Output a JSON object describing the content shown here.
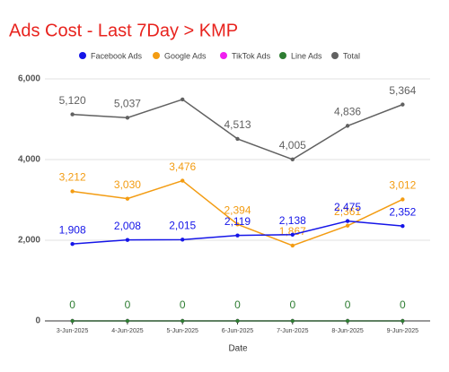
{
  "chart_data": {
    "type": "line",
    "title": "Ads Cost - Last 7Day > KMP",
    "x_label": "Date",
    "categories": [
      "3-Jun-2025",
      "4-Jun-2025",
      "5-Jun-2025",
      "6-Jun-2025",
      "7-Jun-2025",
      "8-Jun-2025",
      "9-Jun-2025"
    ],
    "ylim": [
      0,
      6000
    ],
    "yticks": [
      0,
      {
        "value": 2000,
        "label": "2,000"
      },
      {
        "value": 4000,
        "label": "4,000"
      },
      {
        "value": 6000,
        "label": "6,000"
      }
    ],
    "grid": true,
    "legend": "top",
    "series": [
      {
        "name": "Facebook Ads",
        "color": "#1515e8",
        "values": [
          1908,
          2008,
          2015,
          2119,
          2138,
          2475,
          2352
        ],
        "value_labels": [
          "1,908",
          "2,008",
          "2,015",
          "2,119",
          "2,138",
          "2,475",
          "2,352"
        ]
      },
      {
        "name": "Google Ads",
        "color": "#f39c12",
        "values": [
          3212,
          3030,
          3476,
          2394,
          1867,
          2361,
          3012
        ],
        "value_labels": [
          "3,212",
          "3,030",
          "3,476",
          "2,394",
          "1,867",
          "2,361",
          "3,012"
        ]
      },
      {
        "name": "TikTok Ads",
        "color": "#f01ef0",
        "values": [
          0,
          0,
          0,
          0,
          0,
          0,
          0
        ]
      },
      {
        "name": "Line Ads",
        "color": "#2e7d32",
        "values": [
          0,
          0,
          0,
          0,
          0,
          0,
          0
        ],
        "value_labels": [
          0,
          0,
          0,
          0,
          0,
          0,
          0
        ]
      },
      {
        "name": "Total",
        "color": "#616161",
        "values": [
          5120,
          5037,
          5491,
          4513,
          4005,
          4836,
          5364
        ],
        "value_labels": [
          "5,120",
          "5,037",
          null,
          "4,513",
          "4,005",
          "4,836",
          "5,364"
        ]
      }
    ]
  }
}
